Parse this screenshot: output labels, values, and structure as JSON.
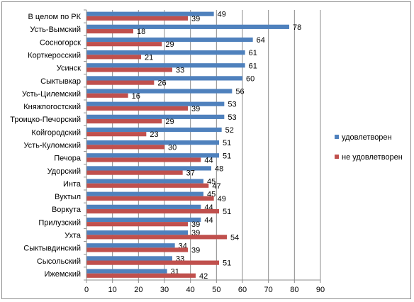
{
  "chart_data": {
    "type": "bar",
    "orientation": "horizontal",
    "categories": [
      "В целом по РК",
      "Усть-Вымский",
      "Сосногорск",
      "Корткеросский",
      "Усинск",
      "Сыктывкар",
      "Усть-Цилемский",
      "Княжпогостский",
      "Троицко-Печорский",
      "Койгородский",
      "Усть-Куломский",
      "Печора",
      "Удорский",
      "Инта",
      "Вуктыл",
      "Воркута",
      "Прилузский",
      "Ухта",
      "Сыктывдинский",
      "Сысольский",
      "Ижемский"
    ],
    "series": [
      {
        "name": "удовлетворен",
        "color": "#4f81bd",
        "values": [
          49,
          78,
          64,
          61,
          61,
          60,
          56,
          53,
          53,
          52,
          51,
          51,
          48,
          45,
          45,
          44,
          44,
          39,
          34,
          33,
          31
        ]
      },
      {
        "name": "не удовлетворен",
        "color": "#c0504d",
        "values": [
          39,
          18,
          29,
          21,
          33,
          26,
          16,
          39,
          29,
          23,
          30,
          44,
          37,
          47,
          49,
          51,
          39,
          54,
          39,
          51,
          42
        ]
      }
    ],
    "xlim": [
      0,
      90
    ],
    "xticks": [
      0,
      10,
      20,
      30,
      40,
      50,
      60,
      70,
      80,
      90
    ],
    "grid": true,
    "legend_position": "right"
  }
}
